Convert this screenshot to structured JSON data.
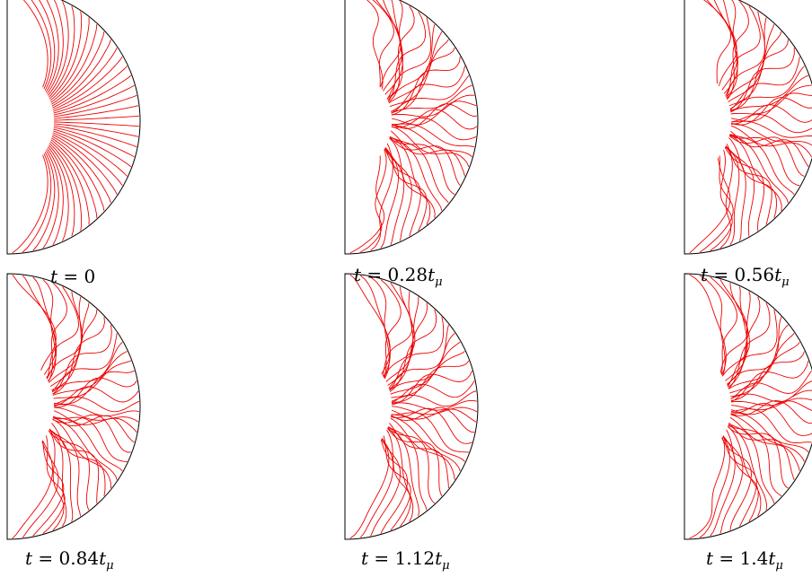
{
  "figure": {
    "line_color": "#ee0000",
    "outline_color": "#000000",
    "panels": [
      {
        "id": "p1",
        "time_label": "0",
        "pattern": "radial"
      },
      {
        "id": "p2",
        "time_label": "0.28",
        "pattern": "turbulent"
      },
      {
        "id": "p3",
        "time_label": "0.56",
        "pattern": "turbulent"
      },
      {
        "id": "p4",
        "time_label": "0.84",
        "pattern": "turbulent"
      },
      {
        "id": "p5",
        "time_label": "1.12",
        "pattern": "turbulent"
      },
      {
        "id": "p6",
        "time_label": "1.4",
        "pattern": "turbulent"
      }
    ],
    "time_symbol": "t",
    "time_unit_symbol": "t",
    "time_unit_subscript": "μ"
  }
}
